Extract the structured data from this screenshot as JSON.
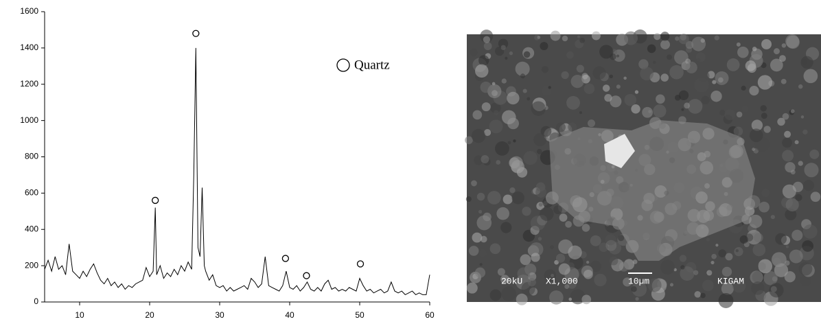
{
  "chart_data": {
    "type": "line",
    "xlim": [
      5,
      60
    ],
    "xticks": [
      10,
      20,
      30,
      40,
      50,
      60
    ],
    "ylim": [
      0,
      1600
    ],
    "yticks": [
      0,
      200,
      400,
      600,
      800,
      1000,
      1200,
      1400,
      1600
    ],
    "series": [
      {
        "color": "#000000",
        "x": [
          5,
          5.5,
          6,
          6.5,
          7,
          7.5,
          8,
          8.5,
          9,
          9.5,
          10,
          10.5,
          11,
          11.5,
          12,
          12.5,
          13,
          13.5,
          14,
          14.5,
          15,
          15.5,
          16,
          16.5,
          17,
          17.5,
          18,
          18.5,
          19,
          19.5,
          20,
          20.5,
          20.8,
          21,
          21.5,
          22,
          22.5,
          23,
          23.5,
          24,
          24.5,
          25,
          25.5,
          26,
          26.3,
          26.6,
          26.9,
          27.2,
          27.5,
          27.8,
          28,
          28.5,
          29,
          29.5,
          30,
          30.5,
          31,
          31.5,
          32,
          32.5,
          33,
          33.5,
          34,
          34.5,
          35,
          35.5,
          36,
          36.5,
          37,
          37.5,
          38,
          38.5,
          39,
          39.5,
          40,
          40.5,
          41,
          41.5,
          42,
          42.5,
          43,
          43.5,
          44,
          44.5,
          45,
          45.5,
          46,
          46.5,
          47,
          47.5,
          48,
          48.5,
          49,
          49.5,
          50,
          50.5,
          51,
          51.5,
          52,
          52.5,
          53,
          53.5,
          54,
          54.5,
          55,
          55.5,
          56,
          56.5,
          57,
          57.5,
          58,
          58.5,
          59,
          59.5,
          60
        ],
        "values": [
          180,
          230,
          170,
          250,
          180,
          200,
          150,
          320,
          170,
          150,
          130,
          170,
          140,
          180,
          210,
          160,
          120,
          100,
          130,
          90,
          110,
          80,
          100,
          70,
          90,
          80,
          100,
          110,
          120,
          190,
          140,
          170,
          520,
          150,
          200,
          130,
          160,
          140,
          180,
          150,
          200,
          170,
          220,
          180,
          700,
          1400,
          300,
          250,
          630,
          200,
          170,
          120,
          150,
          90,
          80,
          90,
          60,
          80,
          60,
          70,
          80,
          90,
          70,
          130,
          110,
          80,
          100,
          250,
          90,
          80,
          70,
          60,
          90,
          170,
          80,
          70,
          90,
          60,
          80,
          110,
          70,
          60,
          80,
          60,
          100,
          120,
          70,
          80,
          60,
          70,
          60,
          80,
          70,
          60,
          130,
          90,
          60,
          70,
          50,
          60,
          70,
          50,
          60,
          110,
          60,
          50,
          60,
          40,
          50,
          60,
          40,
          50,
          40,
          40,
          150
        ]
      },
      {
        "name": "Quartz",
        "marker": "circle",
        "color": "#000000",
        "x": [
          20.8,
          26.6,
          39.4,
          42.4,
          50.1
        ],
        "values": [
          560,
          1480,
          240,
          145,
          210
        ]
      }
    ]
  },
  "image": {
    "labels": [
      "20kU",
      "X1,000",
      "10µm",
      "KIGAM"
    ]
  }
}
